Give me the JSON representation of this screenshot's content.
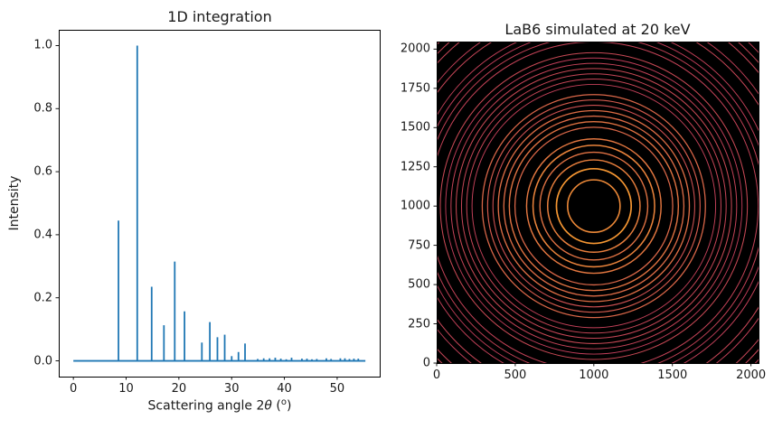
{
  "figure": {
    "background": "#ffffff",
    "text_color": "#1a1a1a",
    "spine_color": "#000000"
  },
  "chart_data": [
    {
      "type": "line",
      "title": "1D integration",
      "ylabel": "Intensity",
      "xlabel": "Scattering angle 2θ (°)",
      "xlabel_parts": {
        "pre": "Scattering angle 2",
        "theta": "θ",
        "mid": " (",
        "sup": "o",
        "post": ")"
      },
      "xlim": [
        -2.766,
        58.066
      ],
      "ylim": [
        -0.05,
        1.05
      ],
      "xticks": [
        0,
        10,
        20,
        30,
        40,
        50
      ],
      "xtick_labels": [
        "0",
        "10",
        "20",
        "30",
        "40",
        "50"
      ],
      "yticks": [
        0,
        0.2,
        0.4,
        0.6,
        0.8,
        1.0
      ],
      "ytick_labels": [
        "0.0",
        "0.2",
        "0.4",
        "0.6",
        "0.8",
        "1.0"
      ],
      "grid": false,
      "line_color": "#1f77b4",
      "baseline": 0.0,
      "x_range": [
        0,
        55.35
      ],
      "peaks": [
        [
          8.553,
          0.445
        ],
        [
          12.108,
          1.0
        ],
        [
          14.844,
          0.235
        ],
        [
          17.166,
          0.113
        ],
        [
          19.215,
          0.315
        ],
        [
          21.069,
          0.157
        ],
        [
          24.359,
          0.058
        ],
        [
          25.868,
          0.123
        ],
        [
          27.305,
          0.075
        ],
        [
          28.683,
          0.083
        ],
        [
          30.01,
          0.015
        ],
        [
          31.293,
          0.028
        ],
        [
          32.538,
          0.055
        ],
        [
          34.935,
          0.006
        ],
        [
          36.078,
          0.008
        ],
        [
          37.187,
          0.008
        ],
        [
          38.267,
          0.01
        ],
        [
          39.32,
          0.007
        ],
        [
          40.35,
          0.005
        ],
        [
          41.359,
          0.01
        ],
        [
          43.319,
          0.007
        ],
        [
          44.273,
          0.007
        ],
        [
          45.212,
          0.005
        ],
        [
          46.138,
          0.006
        ],
        [
          47.954,
          0.008
        ],
        [
          48.845,
          0.006
        ],
        [
          50.601,
          0.008
        ],
        [
          51.466,
          0.008
        ],
        [
          52.323,
          0.006
        ],
        [
          53.173,
          0.007
        ],
        [
          54.005,
          0.007
        ]
      ]
    },
    {
      "type": "heatmap",
      "title": "LaB6 simulated at 20 keV",
      "xlim": [
        0,
        2048
      ],
      "ylim": [
        0,
        2048
      ],
      "xticks": [
        0,
        500,
        1000,
        1500,
        2000
      ],
      "xtick_labels": [
        "0",
        "500",
        "1000",
        "1500",
        "2000"
      ],
      "yticks": [
        0,
        250,
        500,
        750,
        1000,
        1250,
        1500,
        1750,
        2000
      ],
      "ytick_labels": [
        "0",
        "250",
        "500",
        "750",
        "1000",
        "1250",
        "1500",
        "1750",
        "2000"
      ],
      "grid": false,
      "background": "#000000",
      "beam_center": [
        1000,
        1000
      ],
      "ring_color_low": "#bf3a5c",
      "ring_color_high": "#f59632",
      "rings": [
        [
          8.553,
          167,
          0.445
        ],
        [
          12.108,
          238,
          1.0
        ],
        [
          14.844,
          294,
          0.235
        ],
        [
          17.166,
          343,
          0.113
        ],
        [
          19.215,
          387,
          0.315
        ],
        [
          21.069,
          428,
          0.157
        ],
        [
          24.359,
          502,
          0.058
        ],
        [
          25.868,
          538,
          0.123
        ],
        [
          27.305,
          573,
          0.075
        ],
        [
          28.683,
          608,
          0.083
        ],
        [
          30.01,
          642,
          0.015
        ],
        [
          31.293,
          676,
          0.028
        ],
        [
          32.538,
          710,
          0.055
        ],
        [
          34.935,
          775,
          0.006
        ],
        [
          36.078,
          809,
          0.008
        ],
        [
          37.187,
          842,
          0.008
        ],
        [
          38.267,
          876,
          0.01
        ],
        [
          39.32,
          909,
          0.007
        ],
        [
          40.35,
          943,
          0.005
        ],
        [
          41.359,
          977,
          0.01
        ],
        [
          43.319,
          1046,
          0.007
        ],
        [
          44.273,
          1082,
          0.007
        ],
        [
          45.212,
          1118,
          0.005
        ],
        [
          46.138,
          1154,
          0.006
        ],
        [
          47.954,
          1231,
          0.008
        ],
        [
          48.845,
          1269,
          0.006
        ],
        [
          50.601,
          1350,
          0.008
        ],
        [
          51.466,
          1391,
          0.008
        ],
        [
          52.323,
          1434,
          0.006
        ]
      ]
    }
  ]
}
